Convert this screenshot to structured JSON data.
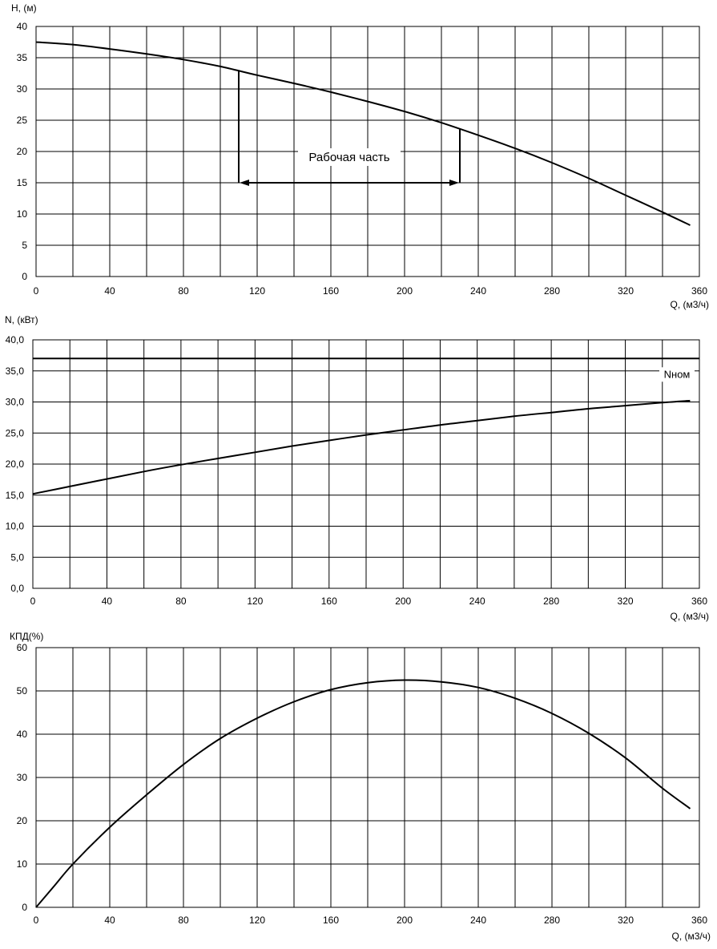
{
  "chart_data": [
    {
      "type": "line",
      "ylabel": "H, (м)",
      "xlabel": "Q, (м3/ч)",
      "xlim": [
        0,
        360
      ],
      "ylim": [
        0,
        40
      ],
      "x_tick_labels": [
        "0",
        "40",
        "80",
        "120",
        "160",
        "200",
        "240",
        "280",
        "320",
        "360"
      ],
      "y_tick_labels": [
        "0",
        "5",
        "10",
        "15",
        "20",
        "25",
        "30",
        "35",
        "40"
      ],
      "grid": true,
      "series": [
        {
          "x": [
            0,
            20,
            40,
            60,
            80,
            100,
            120,
            140,
            160,
            180,
            200,
            220,
            240,
            260,
            280,
            300,
            320,
            340,
            355
          ],
          "values": [
            37.5,
            37.1,
            36.4,
            35.6,
            34.7,
            33.6,
            32.2,
            30.9,
            29.5,
            28.0,
            26.4,
            24.6,
            22.6,
            20.5,
            18.2,
            15.7,
            13.0,
            10.3,
            8.2
          ]
        }
      ],
      "annotation": {
        "text": "Рабочая часть",
        "x_start": 110,
        "x_end": 230,
        "y_arrow": 15
      }
    },
    {
      "type": "line",
      "ylabel": "N, (кВт)",
      "xlabel": "Q, (м3/ч)",
      "xlim": [
        0,
        360
      ],
      "ylim": [
        0,
        40
      ],
      "x_tick_labels": [
        "0",
        "40",
        "80",
        "120",
        "160",
        "200",
        "240",
        "280",
        "320",
        "360"
      ],
      "y_tick_labels": [
        "0,0",
        "5,0",
        "10,0",
        "15,0",
        "20,0",
        "25,0",
        "30,0",
        "35,0",
        "40,0"
      ],
      "grid": true,
      "series": [
        {
          "x": [
            0,
            20,
            40,
            60,
            80,
            100,
            120,
            140,
            160,
            180,
            200,
            220,
            240,
            260,
            280,
            300,
            320,
            340,
            355
          ],
          "values": [
            15.2,
            16.4,
            17.6,
            18.8,
            19.9,
            20.9,
            21.9,
            22.9,
            23.8,
            24.7,
            25.5,
            26.3,
            27.0,
            27.7,
            28.3,
            28.9,
            29.4,
            29.9,
            30.2
          ]
        }
      ],
      "reference_line": {
        "label": "Nном",
        "y": 37
      }
    },
    {
      "type": "line",
      "ylabel": "КПД(%)",
      "xlabel": "Q, (м3/ч)",
      "xlim": [
        0,
        360
      ],
      "ylim": [
        0,
        60
      ],
      "x_tick_labels": [
        "0",
        "40",
        "80",
        "120",
        "160",
        "200",
        "240",
        "280",
        "320",
        "360"
      ],
      "y_tick_labels": [
        "0",
        "10",
        "20",
        "30",
        "40",
        "50",
        "60"
      ],
      "grid": true,
      "series": [
        {
          "x": [
            0,
            10,
            20,
            40,
            60,
            80,
            100,
            120,
            140,
            160,
            180,
            200,
            220,
            240,
            260,
            280,
            300,
            320,
            340,
            355
          ],
          "values": [
            0,
            5,
            10,
            18.5,
            26,
            33,
            39,
            43.7,
            47.5,
            50.3,
            51.9,
            52.5,
            52.1,
            50.8,
            48.3,
            44.8,
            40.2,
            34.5,
            27.5,
            22.8
          ]
        }
      ]
    }
  ]
}
